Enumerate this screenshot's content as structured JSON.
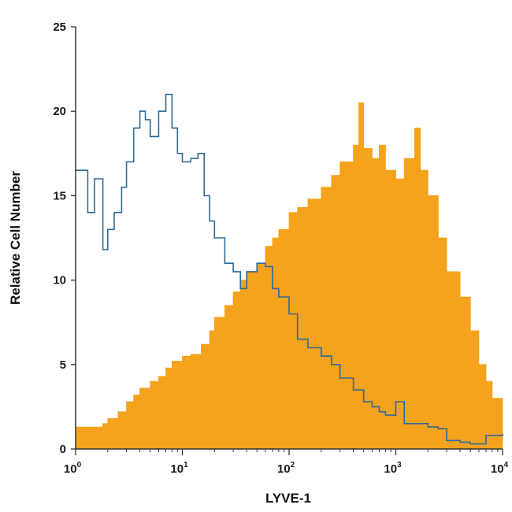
{
  "chart_data": {
    "type": "area",
    "xlabel": "LYVE-1",
    "ylabel": "Relative Cell Number",
    "xscale": "log",
    "xlim": [
      1,
      10000
    ],
    "ylim": [
      0,
      25
    ],
    "x_ticks": [
      {
        "value": 1,
        "base": "10",
        "exp": "0"
      },
      {
        "value": 10,
        "base": "10",
        "exp": "1"
      },
      {
        "value": 100,
        "base": "10",
        "exp": "2"
      },
      {
        "value": 1000,
        "base": "10",
        "exp": "3"
      },
      {
        "value": 10000,
        "base": "10",
        "exp": "4"
      }
    ],
    "y_ticks": [
      0,
      5,
      10,
      15,
      20,
      25
    ],
    "grid": false,
    "legend": "none",
    "series": [
      {
        "style": "filled",
        "color": "#f5a21c",
        "x": [
          1,
          1.5,
          1.8,
          2,
          2.5,
          3,
          3.5,
          4,
          5,
          6,
          7,
          8,
          10,
          12,
          15,
          18,
          20,
          25,
          30,
          35,
          40,
          50,
          60,
          70,
          80,
          100,
          120,
          150,
          200,
          250,
          300,
          400,
          450,
          500,
          600,
          700,
          800,
          1000,
          1200,
          1500,
          1700,
          2000,
          2500,
          3000,
          4000,
          5000,
          6000,
          7000,
          8000,
          10000
        ],
        "values": [
          1.3,
          1.3,
          1.5,
          1.8,
          2.2,
          2.8,
          3.2,
          3.6,
          4.0,
          4.3,
          4.8,
          5.2,
          5.5,
          5.6,
          6.2,
          7.0,
          7.8,
          8.5,
          9.3,
          10.0,
          10.5,
          11.0,
          12.0,
          12.5,
          13.0,
          14.0,
          14.3,
          14.8,
          15.5,
          16.2,
          17.0,
          18.0,
          20.5,
          17.8,
          17.2,
          18.0,
          16.5,
          16.0,
          17.2,
          19.0,
          16.5,
          15.0,
          12.5,
          10.5,
          9.0,
          7.0,
          5.0,
          4.0,
          3.0,
          2.0
        ]
      },
      {
        "style": "outline",
        "color": "#2f6a99",
        "x": [
          1,
          1.3,
          1.5,
          1.8,
          2,
          2.3,
          2.7,
          3,
          3.5,
          4,
          4.5,
          5,
          6,
          7,
          8,
          9,
          10,
          12,
          14,
          16,
          18,
          20,
          25,
          30,
          35,
          40,
          50,
          60,
          70,
          80,
          100,
          120,
          150,
          200,
          250,
          300,
          400,
          500,
          600,
          700,
          800,
          1000,
          1200,
          1500,
          2000,
          2500,
          3000,
          4000,
          5000,
          7000,
          10000
        ],
        "values": [
          16.5,
          14.0,
          16.0,
          11.8,
          13.0,
          14.0,
          15.5,
          17.0,
          19.0,
          20.0,
          19.5,
          18.5,
          20.0,
          21.0,
          19.0,
          17.5,
          17.0,
          17.2,
          17.5,
          15.0,
          13.5,
          12.5,
          11.0,
          10.5,
          9.5,
          10.5,
          11.0,
          10.8,
          9.5,
          9.0,
          8.0,
          6.5,
          6.0,
          5.5,
          5.0,
          4.2,
          3.5,
          2.8,
          2.5,
          2.2,
          2.0,
          2.8,
          1.5,
          1.5,
          1.3,
          1.2,
          0.5,
          0.4,
          0.3,
          0.8,
          0.9
        ]
      }
    ]
  }
}
